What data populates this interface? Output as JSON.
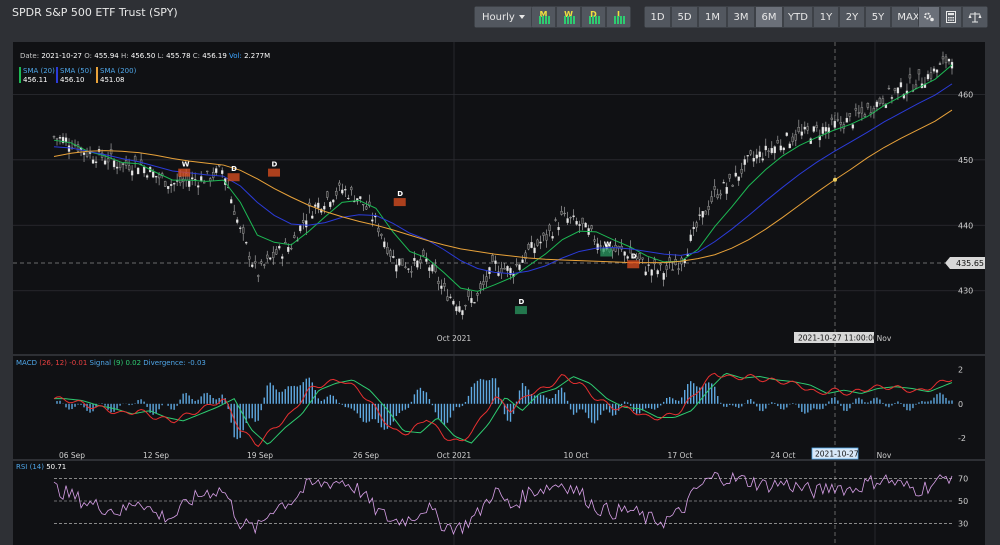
{
  "title": "SPDR S&P 500 ETF Trust (SPY)",
  "interval_label": "Hourly",
  "grouping_buttons": [
    "M",
    "W",
    "D",
    "I"
  ],
  "ranges": [
    "1D",
    "5D",
    "1M",
    "3M",
    "6M",
    "YTD",
    "1Y",
    "2Y",
    "5Y",
    "MAX"
  ],
  "active_range": "6M",
  "tools": [
    "settings-icon",
    "calculator-icon",
    "balance-icon"
  ],
  "ohlc": {
    "date_label": "Date:",
    "date": "2021-10-27",
    "o_label": "O:",
    "o": "455.94",
    "h_label": "H:",
    "h": "456.50",
    "l_label": "L:",
    "l": "455.78",
    "c_label": "C:",
    "c": "456.19",
    "vol_label": "Vol:",
    "vol": "2.277M"
  },
  "legend": [
    {
      "label": "SMA (20)",
      "value": "456.11",
      "color": "#1db954"
    },
    {
      "label": "SMA (50)",
      "value": "456.10",
      "color": "#2b3bd8"
    },
    {
      "label": "SMA (200)",
      "value": "451.08",
      "color": "#e8a23a"
    }
  ],
  "price_axis": {
    "ticks": [
      430,
      440,
      450,
      460
    ],
    "current": "435.65"
  },
  "crosshair": {
    "label": "2021-10-27 11:00:00",
    "short": "2021-10-27"
  },
  "macd": {
    "label": "MACD",
    "params": "(26, 12)",
    "value": "-0.01",
    "signal_label": "Signal",
    "signal_params": "(9)",
    "signal_value": "0.02",
    "div_label": "Divergence:",
    "div_value": "-0.03",
    "ticks": [
      2,
      0,
      -2
    ]
  },
  "rsi": {
    "label": "RSI",
    "params": "(14)",
    "value": "50.71",
    "ticks": [
      70,
      50,
      30
    ]
  },
  "x_labels": [
    "06 Sep",
    "12 Sep",
    "19 Sep",
    "26 Sep",
    "Oct 2021",
    "10 Oct",
    "17 Oct",
    "24 Oct",
    "Nov"
  ],
  "x_label_main": [
    "Oct 2021",
    "Nov"
  ],
  "markers": [
    {
      "type": "W",
      "color": "#e05020",
      "at": 0.145,
      "price": 448.5
    },
    {
      "type": "D",
      "color": "#e05020",
      "at": 0.2,
      "price": 447.8
    },
    {
      "type": "D",
      "color": "#e05020",
      "at": 0.245,
      "price": 448.5
    },
    {
      "type": "D",
      "color": "#e05020",
      "at": 0.385,
      "price": 444
    },
    {
      "type": "D",
      "color": "#2a9a60",
      "at": 0.52,
      "price": 427.5
    },
    {
      "type": "W",
      "color": "#2a9a60",
      "at": 0.615,
      "price": 436.3
    },
    {
      "type": "D",
      "color": "#e05020",
      "at": 0.645,
      "price": 434.5
    }
  ],
  "chart_data": {
    "type": "line",
    "title": "SPDR S&P 500 ETF Trust (SPY)",
    "x_range": [
      "2021-09-03",
      "2021-11-03"
    ],
    "ylim": [
      424,
      468
    ],
    "series": [
      {
        "name": "SPY price",
        "values": [
          453.5,
          452.8,
          451.0,
          450.4,
          449.2,
          449.5,
          447.6,
          446.3,
          446.9,
          447.2,
          448.5,
          439.0,
          432.5,
          435.5,
          437.0,
          442.0,
          444.0,
          445.5,
          444.2,
          440.5,
          435.0,
          433.8,
          434.5,
          430.0,
          427.8,
          429.0,
          434.0,
          433.0,
          436.0,
          438.0,
          441.2,
          440.2,
          437.8,
          436.1,
          435.8,
          433.5,
          433.0,
          434.5,
          440.0,
          444.8,
          446.5,
          449.8,
          451.2,
          452.8,
          453.9,
          454.3,
          455.2,
          456.0,
          457.5,
          459.5,
          460.8,
          462.0,
          463.5,
          466.0
        ]
      },
      {
        "name": "SMA (20)",
        "values": [
          453.0,
          452.6,
          451.3,
          450.6,
          449.6,
          449.4,
          448.1,
          446.9,
          446.9,
          446.7,
          446.9,
          443.5,
          438.5,
          437.4,
          437.0,
          439.0,
          441.3,
          443.5,
          443.8,
          442.6,
          439.0,
          436.0,
          435.0,
          432.8,
          430.4,
          429.9,
          430.9,
          432.0,
          433.8,
          435.6,
          437.8,
          439.1,
          439.0,
          437.8,
          436.7,
          435.3,
          434.4,
          434.5,
          436.3,
          439.8,
          442.8,
          446.0,
          448.5,
          450.6,
          452.2,
          453.4,
          454.5,
          455.4,
          456.6,
          458.3,
          459.7,
          461.0,
          462.3,
          464.5
        ]
      },
      {
        "name": "SMA (50)",
        "values": [
          452.0,
          451.8,
          451.3,
          450.8,
          450.2,
          449.7,
          449.0,
          448.3,
          448.0,
          447.7,
          447.5,
          446.0,
          443.5,
          441.5,
          440.2,
          440.0,
          440.4,
          441.2,
          441.6,
          441.5,
          440.3,
          438.8,
          437.8,
          436.3,
          434.6,
          433.4,
          432.8,
          432.6,
          433.0,
          433.8,
          435.0,
          436.0,
          436.5,
          436.6,
          436.4,
          436.0,
          435.6,
          435.4,
          435.9,
          437.5,
          439.4,
          441.5,
          443.7,
          445.8,
          447.8,
          449.6,
          451.2,
          452.7,
          454.2,
          455.8,
          457.2,
          458.6,
          459.9,
          461.6
        ]
      },
      {
        "name": "SMA (200)",
        "values": [
          450.5,
          451.0,
          451.3,
          451.4,
          451.3,
          451.1,
          450.7,
          450.2,
          449.8,
          449.5,
          449.2,
          448.4,
          447.1,
          445.6,
          444.3,
          443.1,
          442.1,
          441.3,
          440.6,
          440.0,
          439.3,
          438.5,
          437.7,
          437.0,
          436.4,
          436.0,
          435.6,
          435.3,
          435.0,
          434.8,
          434.7,
          434.6,
          434.5,
          434.4,
          434.3,
          434.3,
          434.3,
          434.5,
          434.9,
          435.5,
          436.5,
          437.8,
          439.4,
          441.2,
          443.1,
          445.0,
          446.8,
          448.5,
          450.3,
          451.9,
          453.3,
          454.6,
          455.9,
          457.6
        ]
      }
    ],
    "macd_values": [
      0.3,
      0.2,
      -0.1,
      -0.3,
      -0.6,
      -0.4,
      -0.8,
      -1.0,
      -0.6,
      -0.2,
      0.3,
      -1.5,
      -2.4,
      -1.4,
      -0.6,
      0.8,
      1.2,
      1.4,
      0.8,
      -0.3,
      -1.6,
      -1.7,
      -0.8,
      -1.9,
      -2.3,
      -1.2,
      0.4,
      -0.4,
      0.6,
      0.9,
      1.6,
      1.2,
      0.3,
      -0.2,
      -0.3,
      -0.8,
      -0.8,
      -0.4,
      0.8,
      1.8,
      1.5,
      1.6,
      1.4,
      1.3,
      1.1,
      0.6,
      0.8,
      0.6,
      0.9,
      1.0,
      0.9,
      0.7,
      1.1,
      1.5
    ],
    "rsi_values": [
      62,
      55,
      48,
      44,
      40,
      52,
      38,
      35,
      50,
      58,
      60,
      30,
      25,
      45,
      50,
      64,
      66,
      68,
      60,
      42,
      32,
      34,
      45,
      28,
      26,
      38,
      60,
      44,
      58,
      62,
      66,
      58,
      44,
      40,
      42,
      34,
      32,
      40,
      62,
      72,
      70,
      68,
      64,
      66,
      62,
      58,
      64,
      60,
      66,
      70,
      64,
      60,
      66,
      74
    ],
    "xlabel": "",
    "ylabel": ""
  }
}
